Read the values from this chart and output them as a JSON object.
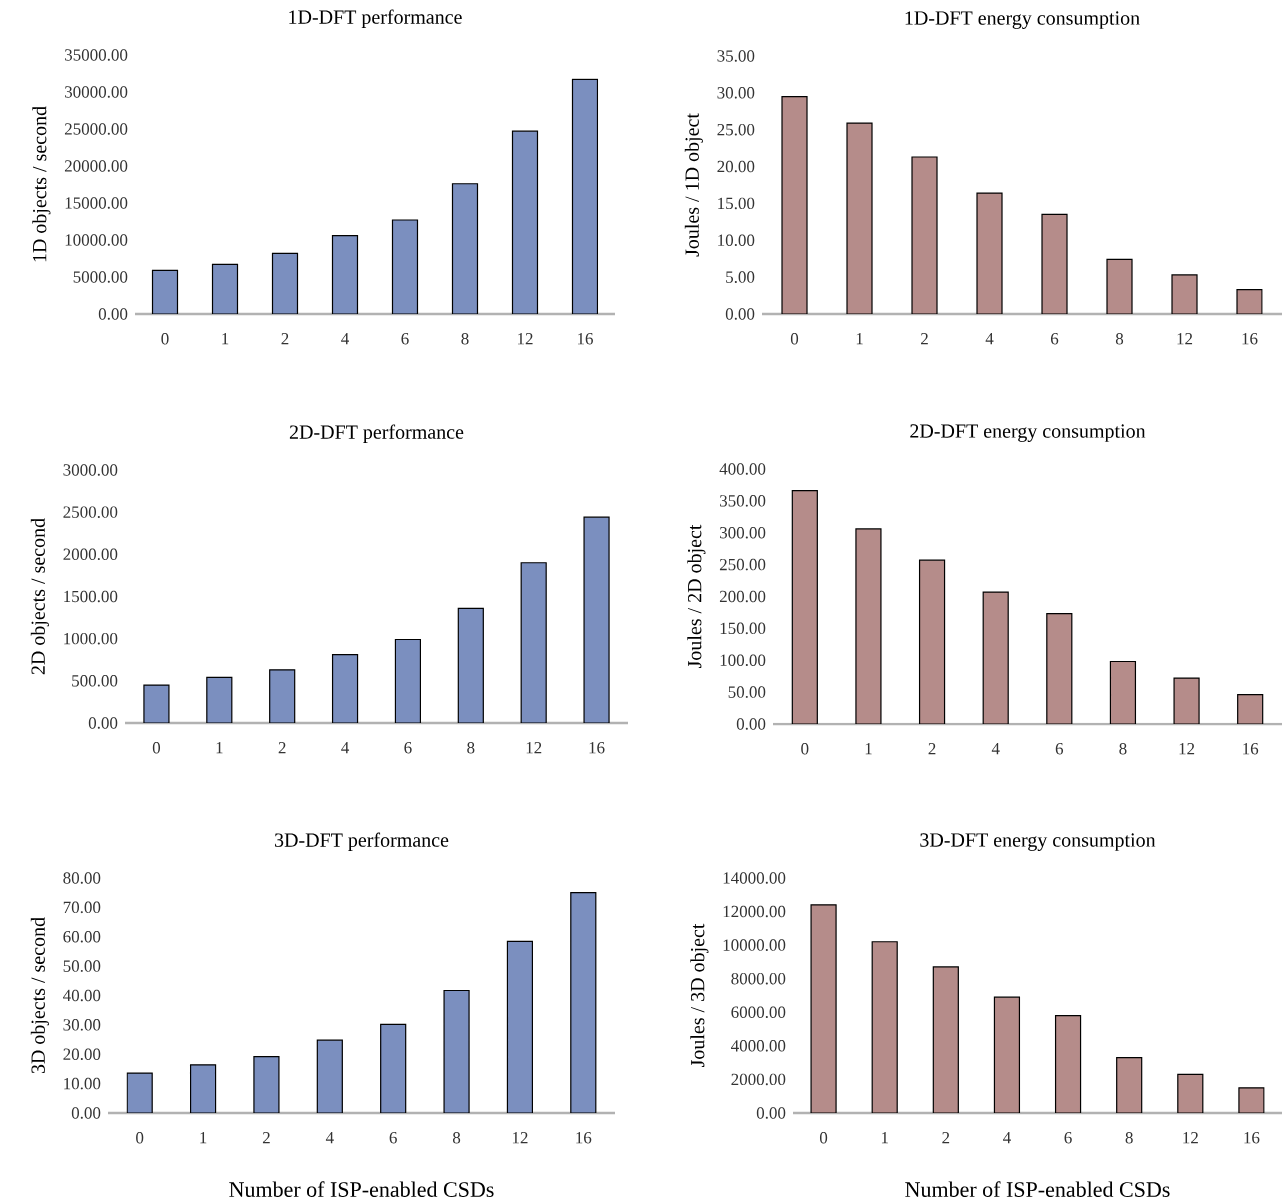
{
  "chart_data": [
    {
      "type": "bar",
      "title": "1D-DFT performance",
      "ylabel": "1D objects / second",
      "categories": [
        "0",
        "1",
        "2",
        "4",
        "6",
        "8",
        "12",
        "16"
      ],
      "values": [
        5900,
        6700,
        8200,
        10600,
        12700,
        17600,
        24700,
        31700
      ],
      "color": "#7b8fbf",
      "ylim": [
        0,
        35000
      ],
      "yticks": [
        {
          "value": 0,
          "label": "0.00"
        },
        {
          "value": 5000,
          "label": "5000.00"
        },
        {
          "value": 10000,
          "label": "10000.00"
        },
        {
          "value": 15000,
          "label": "15000.00"
        },
        {
          "value": 20000,
          "label": "20000.00"
        },
        {
          "value": 25000,
          "label": "25000.00"
        },
        {
          "value": 30000,
          "label": "30000.00"
        },
        {
          "value": 35000,
          "label": "35000.00"
        }
      ]
    },
    {
      "type": "bar",
      "title": "1D-DFT energy consumption",
      "ylabel": "Joules / 1D object",
      "categories": [
        "0",
        "1",
        "2",
        "4",
        "6",
        "8",
        "12",
        "16"
      ],
      "values": [
        29.5,
        25.9,
        21.3,
        16.4,
        13.5,
        7.4,
        5.3,
        3.3
      ],
      "color": "#b58c8a",
      "ylim": [
        0,
        35
      ],
      "yticks": [
        {
          "value": 0,
          "label": "0.00"
        },
        {
          "value": 5,
          "label": "5.00"
        },
        {
          "value": 10,
          "label": "10.00"
        },
        {
          "value": 15,
          "label": "15.00"
        },
        {
          "value": 20,
          "label": "20.00"
        },
        {
          "value": 25,
          "label": "25.00"
        },
        {
          "value": 30,
          "label": "30.00"
        },
        {
          "value": 35,
          "label": "35.00"
        }
      ]
    },
    {
      "type": "bar",
      "title": "2D-DFT performance",
      "ylabel": "2D objects / second",
      "categories": [
        "0",
        "1",
        "2",
        "4",
        "6",
        "8",
        "12",
        "16"
      ],
      "values": [
        450,
        540,
        630,
        810,
        990,
        1360,
        1900,
        2440
      ],
      "color": "#7b8fbf",
      "ylim": [
        0,
        3000
      ],
      "yticks": [
        {
          "value": 0,
          "label": "0.00"
        },
        {
          "value": 500,
          "label": "500.00"
        },
        {
          "value": 1000,
          "label": "1000.00"
        },
        {
          "value": 1500,
          "label": "1500.00"
        },
        {
          "value": 2000,
          "label": "2000.00"
        },
        {
          "value": 2500,
          "label": "2500.00"
        },
        {
          "value": 3000,
          "label": "3000.00"
        }
      ]
    },
    {
      "type": "bar",
      "title": "2D-DFT energy consumption",
      "ylabel": "Joules / 2D object",
      "categories": [
        "0",
        "1",
        "2",
        "4",
        "6",
        "8",
        "12",
        "16"
      ],
      "values": [
        366,
        306,
        257,
        207,
        173,
        98,
        72,
        46
      ],
      "color": "#b58c8a",
      "ylim": [
        0,
        400
      ],
      "yticks": [
        {
          "value": 0,
          "label": "0.00"
        },
        {
          "value": 50,
          "label": "50.00"
        },
        {
          "value": 100,
          "label": "100.00"
        },
        {
          "value": 150,
          "label": "150.00"
        },
        {
          "value": 200,
          "label": "200.00"
        },
        {
          "value": 250,
          "label": "250.00"
        },
        {
          "value": 300,
          "label": "300.00"
        },
        {
          "value": 350,
          "label": "350.00"
        },
        {
          "value": 400,
          "label": "400.00"
        }
      ]
    },
    {
      "type": "bar",
      "title": "3D-DFT performance",
      "ylabel": "3D objects / second",
      "xlabel": "Number of ISP-enabled CSDs",
      "categories": [
        "0",
        "1",
        "2",
        "4",
        "6",
        "8",
        "12",
        "16"
      ],
      "values": [
        13.6,
        16.4,
        19.2,
        24.8,
        30.2,
        41.7,
        58.4,
        75.0
      ],
      "color": "#7b8fbf",
      "ylim": [
        0,
        80
      ],
      "yticks": [
        {
          "value": 0,
          "label": "0.00"
        },
        {
          "value": 10,
          "label": "10.00"
        },
        {
          "value": 20,
          "label": "20.00"
        },
        {
          "value": 30,
          "label": "30.00"
        },
        {
          "value": 40,
          "label": "40.00"
        },
        {
          "value": 50,
          "label": "50.00"
        },
        {
          "value": 60,
          "label": "60.00"
        },
        {
          "value": 70,
          "label": "70.00"
        },
        {
          "value": 80,
          "label": "80.00"
        }
      ]
    },
    {
      "type": "bar",
      "title": "3D-DFT energy consumption",
      "ylabel": "Joules / 3D object",
      "xlabel": "Number of ISP-enabled CSDs",
      "categories": [
        "0",
        "1",
        "2",
        "4",
        "6",
        "8",
        "12",
        "16"
      ],
      "values": [
        12400,
        10200,
        8700,
        6900,
        5800,
        3300,
        2300,
        1500
      ],
      "color": "#b58c8a",
      "ylim": [
        0,
        14000
      ],
      "yticks": [
        {
          "value": 0,
          "label": "0.00"
        },
        {
          "value": 2000,
          "label": "2000.00"
        },
        {
          "value": 4000,
          "label": "4000.00"
        },
        {
          "value": 6000,
          "label": "6000.00"
        },
        {
          "value": 8000,
          "label": "8000.00"
        },
        {
          "value": 10000,
          "label": "10000.00"
        },
        {
          "value": 12000,
          "label": "12000.00"
        },
        {
          "value": 14000,
          "label": "14000.00"
        }
      ]
    }
  ]
}
